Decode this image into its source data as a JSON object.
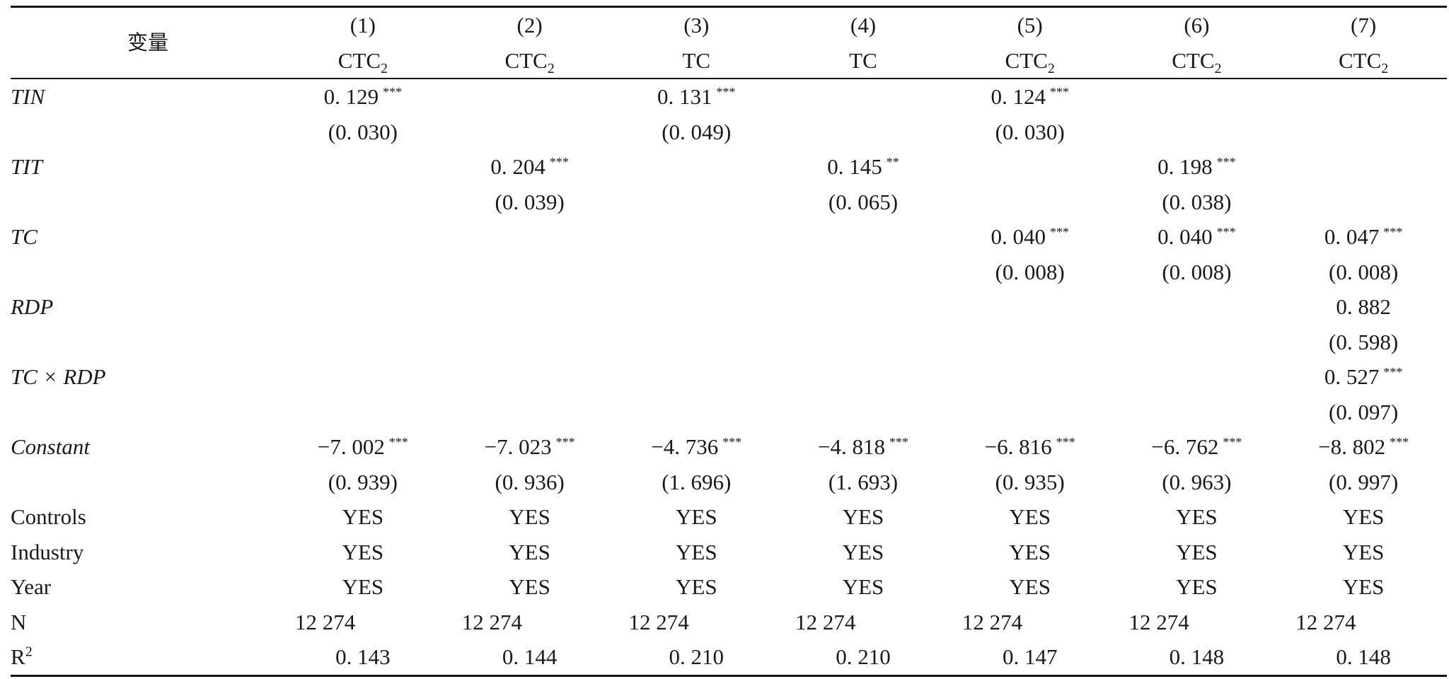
{
  "table": {
    "var_header": "变量",
    "columns": [
      {
        "num": "(1)",
        "dep": "CTC",
        "sub": "2"
      },
      {
        "num": "(2)",
        "dep": "CTC",
        "sub": "2"
      },
      {
        "num": "(3)",
        "dep": "TC",
        "sub": ""
      },
      {
        "num": "(4)",
        "dep": "TC",
        "sub": ""
      },
      {
        "num": "(5)",
        "dep": "CTC",
        "sub": "2"
      },
      {
        "num": "(6)",
        "dep": "CTC",
        "sub": "2"
      },
      {
        "num": "(7)",
        "dep": "CTC",
        "sub": "2"
      }
    ],
    "variables": [
      {
        "label": "TIN",
        "coef": [
          {
            "v": "0. 129",
            "s": "***"
          },
          {
            "v": "",
            "s": ""
          },
          {
            "v": "0. 131",
            "s": "***"
          },
          {
            "v": "",
            "s": ""
          },
          {
            "v": "0. 124",
            "s": "***"
          },
          {
            "v": "",
            "s": ""
          },
          {
            "v": "",
            "s": ""
          }
        ],
        "se": [
          "(0. 030)",
          "",
          "(0. 049)",
          "",
          "(0. 030)",
          "",
          ""
        ]
      },
      {
        "label": "TIT",
        "coef": [
          {
            "v": "",
            "s": ""
          },
          {
            "v": "0. 204",
            "s": "***"
          },
          {
            "v": "",
            "s": ""
          },
          {
            "v": "0. 145",
            "s": "**"
          },
          {
            "v": "",
            "s": ""
          },
          {
            "v": "0. 198",
            "s": "***"
          },
          {
            "v": "",
            "s": ""
          }
        ],
        "se": [
          "",
          "(0. 039)",
          "",
          "(0. 065)",
          "",
          "(0. 038)",
          ""
        ]
      },
      {
        "label": "TC",
        "coef": [
          {
            "v": "",
            "s": ""
          },
          {
            "v": "",
            "s": ""
          },
          {
            "v": "",
            "s": ""
          },
          {
            "v": "",
            "s": ""
          },
          {
            "v": "0. 040",
            "s": "***"
          },
          {
            "v": "0. 040",
            "s": "***"
          },
          {
            "v": "0. 047",
            "s": "***"
          }
        ],
        "se": [
          "",
          "",
          "",
          "",
          "(0. 008)",
          "(0. 008)",
          "(0. 008)"
        ]
      },
      {
        "label": "RDP",
        "coef": [
          {
            "v": "",
            "s": ""
          },
          {
            "v": "",
            "s": ""
          },
          {
            "v": "",
            "s": ""
          },
          {
            "v": "",
            "s": ""
          },
          {
            "v": "",
            "s": ""
          },
          {
            "v": "",
            "s": ""
          },
          {
            "v": "0. 882",
            "s": ""
          }
        ],
        "se": [
          "",
          "",
          "",
          "",
          "",
          "",
          "(0. 598)"
        ]
      },
      {
        "label": "TC × RDP",
        "coef": [
          {
            "v": "",
            "s": ""
          },
          {
            "v": "",
            "s": ""
          },
          {
            "v": "",
            "s": ""
          },
          {
            "v": "",
            "s": ""
          },
          {
            "v": "",
            "s": ""
          },
          {
            "v": "",
            "s": ""
          },
          {
            "v": "0. 527",
            "s": "***"
          }
        ],
        "se": [
          "",
          "",
          "",
          "",
          "",
          "",
          "(0. 097)"
        ]
      },
      {
        "label": "Constant",
        "coef": [
          {
            "v": "−7. 002",
            "s": "***"
          },
          {
            "v": "−7. 023",
            "s": "***"
          },
          {
            "v": "−4. 736",
            "s": "***"
          },
          {
            "v": "−4. 818",
            "s": "***"
          },
          {
            "v": "−6. 816",
            "s": "***"
          },
          {
            "v": "−6. 762",
            "s": "***"
          },
          {
            "v": "−8. 802",
            "s": "***"
          }
        ],
        "se": [
          "(0. 939)",
          "(0. 936)",
          "(1. 696)",
          "(1. 693)",
          "(0. 935)",
          "(0. 963)",
          "(0. 997)"
        ]
      }
    ],
    "stats": [
      {
        "label": "Controls",
        "vals": [
          "YES",
          "YES",
          "YES",
          "YES",
          "YES",
          "YES",
          "YES"
        ]
      },
      {
        "label": "Industry",
        "vals": [
          "YES",
          "YES",
          "YES",
          "YES",
          "YES",
          "YES",
          "YES"
        ]
      },
      {
        "label": "Year",
        "vals": [
          "YES",
          "YES",
          "YES",
          "YES",
          "YES",
          "YES",
          "YES"
        ]
      },
      {
        "label": "N",
        "vals": [
          "12 274",
          "12 274",
          "12 274",
          "12 274",
          "12 274",
          "12 274",
          "12 274"
        ]
      },
      {
        "label": "R",
        "label_sup": "2",
        "vals": [
          "0. 143",
          "0. 144",
          "0. 210",
          "0. 210",
          "0. 147",
          "0. 148",
          "0. 148"
        ]
      }
    ]
  }
}
